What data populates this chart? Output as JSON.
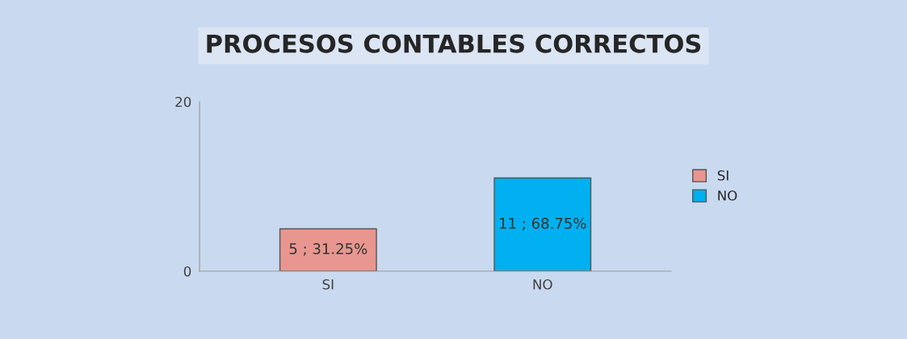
{
  "chart_data": {
    "type": "bar",
    "title": "PROCESOS CONTABLES CORRECTOS",
    "categories": [
      "SI",
      "NO"
    ],
    "series": [
      {
        "name": "SI",
        "color": "#e8968f",
        "values": [
          5,
          null
        ],
        "value_labels": [
          "5 ; 31.25%",
          null
        ]
      },
      {
        "name": "NO",
        "color": "#00b0f0",
        "values": [
          null,
          11
        ],
        "value_labels": [
          null,
          "11 ; 68.75%"
        ]
      }
    ],
    "ylim": [
      0,
      20
    ],
    "yticks": [
      0,
      20
    ],
    "grid": false,
    "legend": "right"
  }
}
